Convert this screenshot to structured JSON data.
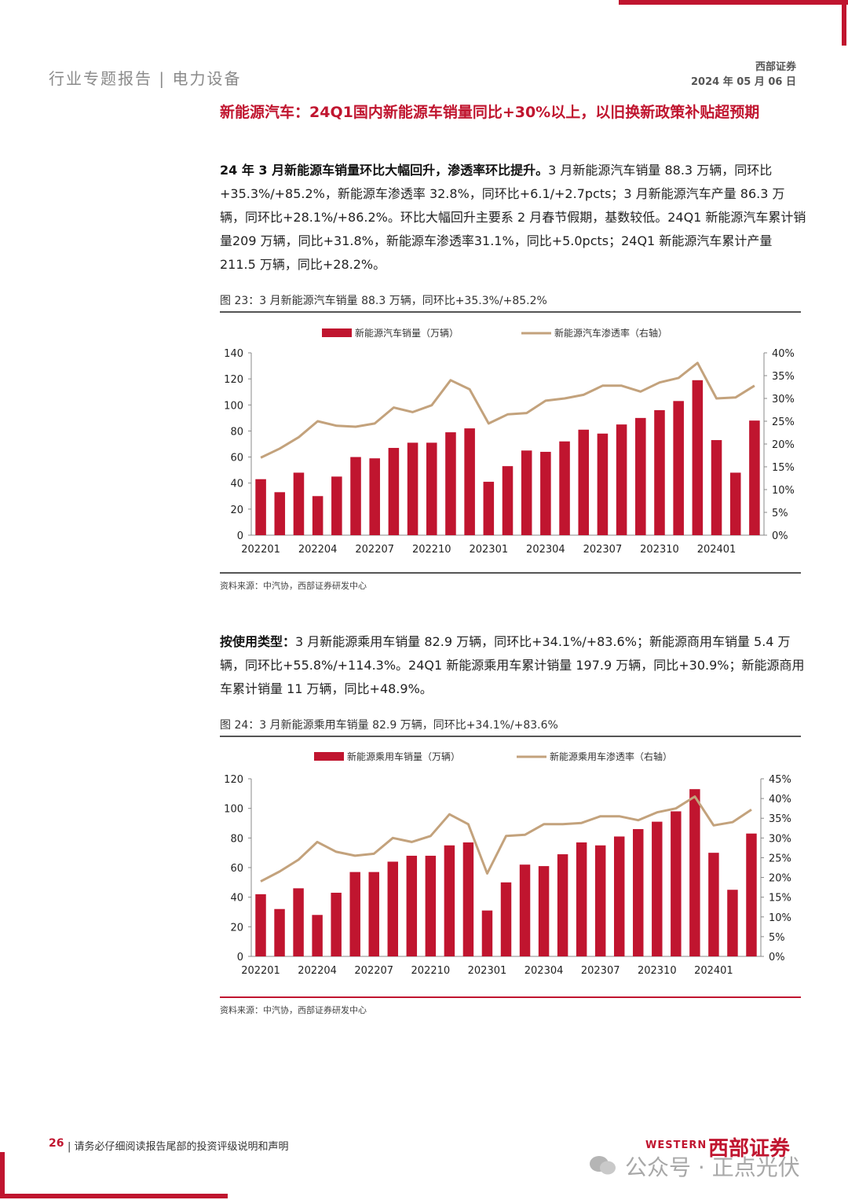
{
  "header": {
    "left": "行业专题报告 | 电力设备",
    "company": "西部证券",
    "date": "2024 年 05 月 06 日"
  },
  "section_title": "新能源汽车：24Q1国内新能源车销量同比+30%以上，以旧换新政策补贴超预期",
  "para1": {
    "bold": "24 年 3 月新能源车销量环比大幅回升，渗透率环比提升。",
    "text": "3 月新能源汽车销量 88.3 万辆，同环比+35.3%/+85.2%，新能源车渗透率 32.8%，同环比+6.1/+2.7pcts；3 月新能源汽车产量 86.3 万辆，同环比+28.1%/+86.2%。环比大幅回升主要系 2 月春节假期，基数较低。24Q1 新能源汽车累计销量209 万辆，同比+31.8%，新能源车渗透率31.1%，同比+5.0pcts；24Q1 新能源汽车累计产量 211.5 万辆，同比+28.2%。"
  },
  "fig23": {
    "title": "图 23：3 月新能源汽车销量 88.3 万辆，同环比+35.3%/+85.2%",
    "source": "资料来源：中汽协，西部证券研发中心"
  },
  "para2": {
    "bold": "按使用类型：",
    "text": "3 月新能源乘用车销量 82.9 万辆，同环比+34.1%/+83.6%；新能源商用车销量 5.4 万辆，同环比+55.8%/+114.3%。24Q1 新能源乘用车累计销量 197.9 万辆，同比+30.9%；新能源商用车累计销量 11 万辆，同比+48.9%。"
  },
  "fig24": {
    "title": "图 24：3 月新能源乘用车销量 82.9 万辆，同环比+34.1%/+83.6%",
    "source": "资料来源：中汽协，西部证券研发中心"
  },
  "footer": {
    "page": "26",
    "text": "| 请务必仔细阅读报告尾部的投资评级说明和声明",
    "logo_en": "WESTERN",
    "logo_cn": "西部证券",
    "watermark": "公众号 · 正点光伏"
  },
  "colors": {
    "bar": "#c0152f",
    "line": "#c3a27c",
    "accent": "#c0152f"
  },
  "chart_data": [
    {
      "type": "bar",
      "categories": [
        "202201",
        "202202",
        "202203",
        "202204",
        "202205",
        "202206",
        "202207",
        "202208",
        "202209",
        "202210",
        "202211",
        "202212",
        "202301",
        "202302",
        "202303",
        "202304",
        "202305",
        "202306",
        "202307",
        "202308",
        "202309",
        "202310",
        "202311",
        "202312",
        "202401",
        "202402",
        "202403"
      ],
      "tick_labels": [
        "202201",
        "202204",
        "202207",
        "202210",
        "202301",
        "202304",
        "202307",
        "202310",
        "202401"
      ],
      "series": [
        {
          "name": "新能源汽车销量（万辆）",
          "type": "bar",
          "axis": "left",
          "values": [
            43,
            33,
            48,
            30,
            45,
            60,
            59,
            67,
            71,
            71,
            79,
            82,
            41,
            53,
            65,
            64,
            72,
            81,
            78,
            85,
            90,
            96,
            103,
            119,
            73,
            48,
            88
          ]
        },
        {
          "name": "新能源汽车渗透率（右轴）",
          "type": "line",
          "axis": "right",
          "values": [
            17,
            19,
            21.5,
            25,
            24,
            23.8,
            24.5,
            28,
            27,
            28.5,
            34,
            32,
            24.5,
            26.5,
            26.8,
            29.5,
            30,
            30.8,
            32.8,
            32.8,
            31.5,
            33.5,
            34.5,
            37.8,
            30,
            30.2,
            32.8
          ]
        }
      ],
      "y_left": {
        "min": 0,
        "max": 140,
        "step": 20
      },
      "y_right": {
        "min": 0,
        "max": 40,
        "step": 5,
        "unit": "%"
      },
      "legend": "top"
    },
    {
      "type": "bar",
      "categories": [
        "202201",
        "202202",
        "202203",
        "202204",
        "202205",
        "202206",
        "202207",
        "202208",
        "202209",
        "202210",
        "202211",
        "202212",
        "202301",
        "202302",
        "202303",
        "202304",
        "202305",
        "202306",
        "202307",
        "202308",
        "202309",
        "202310",
        "202311",
        "202312",
        "202401",
        "202402",
        "202403"
      ],
      "tick_labels": [
        "202201",
        "202204",
        "202207",
        "202210",
        "202301",
        "202304",
        "202307",
        "202310",
        "202401"
      ],
      "series": [
        {
          "name": "新能源乘用车销量（万辆）",
          "type": "bar",
          "axis": "left",
          "values": [
            42,
            32,
            46,
            28,
            43,
            57,
            57,
            64,
            68,
            68,
            75,
            77,
            31,
            50,
            62,
            61,
            69,
            77,
            75,
            81,
            86,
            91,
            98,
            113,
            70,
            45,
            83
          ]
        },
        {
          "name": "新能源乘用车渗透率（右轴）",
          "type": "line",
          "axis": "right",
          "values": [
            19,
            21.5,
            24.5,
            29,
            26.5,
            25.5,
            26,
            30,
            29,
            30.5,
            36,
            33.5,
            21,
            30.5,
            30.8,
            33.5,
            33.5,
            33.8,
            35.5,
            35.5,
            34.5,
            36.5,
            37.5,
            40.5,
            33.2,
            34,
            37.2
          ]
        }
      ],
      "y_left": {
        "min": 0,
        "max": 120,
        "step": 20
      },
      "y_right": {
        "min": 0,
        "max": 45,
        "step": 5,
        "unit": "%"
      },
      "legend": "top"
    }
  ]
}
